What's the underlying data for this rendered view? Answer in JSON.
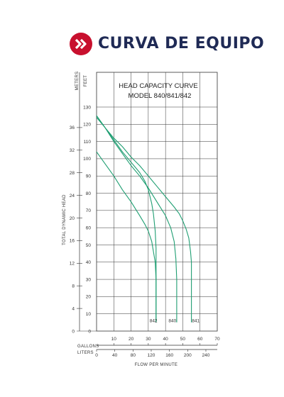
{
  "header": {
    "title": "CURVA DE EQUIPO",
    "logo_icon": "double-chevron-right-icon",
    "logo_color": "#c8102e",
    "title_color": "#1f2a55"
  },
  "chart_data": {
    "type": "line",
    "title": "HEAD CAPACITY CURVE",
    "subtitle": "MODEL 840/841/842",
    "ylabel": "TOTAL DYNAMIC HEAD",
    "xlabel": "FLOW PER MINUTE",
    "y_feet_label": "FEET",
    "y_meters_label": "METERS",
    "x_gallons_label": "GALLONS",
    "x_liters_label": "LITERS",
    "x_unit": "gallons",
    "y_unit": "feet",
    "xlim": [
      0,
      70
    ],
    "ylim": [
      0,
      130
    ],
    "grid": true,
    "feet_ticks": [
      0,
      10,
      20,
      30,
      40,
      50,
      60,
      70,
      80,
      90,
      100,
      110,
      120,
      130
    ],
    "meter_ticks": [
      4,
      8,
      12,
      16,
      20,
      24,
      28,
      32,
      36
    ],
    "gallon_ticks": [
      10,
      20,
      30,
      40,
      50,
      60,
      70
    ],
    "liter_ticks": [
      0,
      40,
      80,
      120,
      160,
      200,
      240
    ],
    "series_color": "#1f9e72",
    "series": [
      {
        "name": "842",
        "x": [
          0,
          5,
          10,
          15,
          20,
          25,
          28,
          30,
          32,
          34,
          34.5,
          34.5
        ],
        "y": [
          104,
          97,
          90,
          82,
          75,
          67,
          62,
          58,
          52,
          40,
          30,
          5
        ]
      },
      {
        "name": "840",
        "x": [
          0,
          5,
          10,
          15,
          20,
          25,
          28,
          30,
          31,
          32,
          33,
          34,
          34.5,
          34.5
        ],
        "y": [
          125,
          118,
          111,
          104,
          98,
          92,
          87,
          82,
          78,
          74,
          68,
          58,
          48,
          5
        ]
      },
      {
        "name": "841",
        "x": [
          0,
          5,
          10,
          15,
          20,
          25,
          30,
          35,
          40,
          43,
          45,
          46,
          46.5,
          46.5
        ],
        "y": [
          125,
          118,
          110,
          103,
          96,
          90,
          83,
          75,
          67,
          60,
          52,
          42,
          30,
          5
        ]
      },
      {
        "name": "840",
        "x": [
          0,
          5,
          10,
          15,
          20,
          25,
          30,
          35,
          40,
          45,
          48,
          50,
          52,
          53.5,
          54.5,
          55,
          55
        ],
        "y": [
          124,
          118,
          112,
          107,
          101,
          96,
          90,
          84,
          78,
          72,
          68,
          64,
          59,
          54,
          46,
          40,
          5
        ]
      }
    ],
    "curve_labels": [
      {
        "text": "842",
        "x": 33,
        "y": 6
      },
      {
        "text": "840",
        "x": 44,
        "y": 6
      },
      {
        "text": "841",
        "x": 57.5,
        "y": 6
      }
    ]
  }
}
